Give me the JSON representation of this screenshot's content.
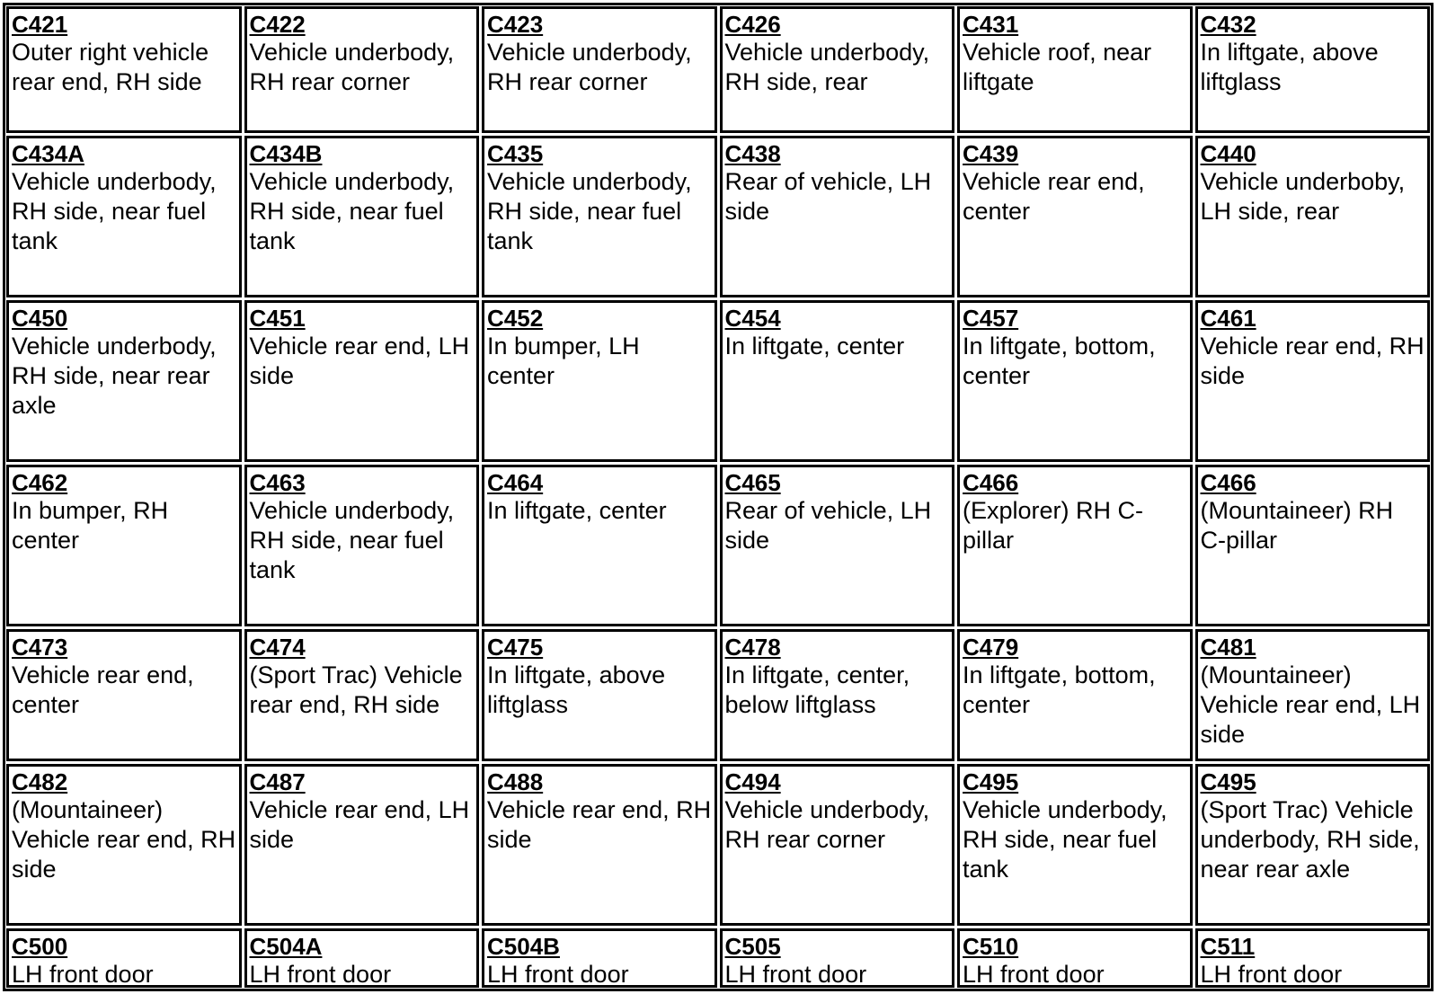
{
  "cells": [
    {
      "code": "C421",
      "desc": "Outer right vehicle rear end, RH side"
    },
    {
      "code": "C422",
      "desc": "Vehicle underbody, RH rear corner"
    },
    {
      "code": "C423",
      "desc": "Vehicle underbody, RH rear corner"
    },
    {
      "code": "C426",
      "desc": "Vehicle underbody, RH side, rear"
    },
    {
      "code": "C431",
      "desc": "Vehicle roof, near liftgate"
    },
    {
      "code": "C432",
      "desc": "In liftgate, above liftglass"
    },
    {
      "code": "C434A",
      "desc": "Vehicle underbody, RH side, near fuel tank"
    },
    {
      "code": "C434B",
      "desc": "Vehicle underbody, RH side, near fuel tank"
    },
    {
      "code": "C435",
      "desc": "Vehicle underbody, RH side, near fuel tank"
    },
    {
      "code": "C438",
      "desc": "Rear of vehicle, LH side"
    },
    {
      "code": "C439",
      "desc": "Vehicle rear end, center"
    },
    {
      "code": "C440",
      "desc": "Vehicle underboby, LH side, rear"
    },
    {
      "code": "C450",
      "desc": "Vehicle underbody, RH side, near rear axle"
    },
    {
      "code": "C451",
      "desc": "Vehicle rear end, LH side"
    },
    {
      "code": "C452",
      "desc": "In bumper, LH center"
    },
    {
      "code": "C454",
      "desc": "In liftgate, center"
    },
    {
      "code": "C457",
      "desc": "In liftgate, bottom, center"
    },
    {
      "code": "C461",
      "desc": "Vehicle rear end, RH side"
    },
    {
      "code": "C462",
      "desc": "In bumper, RH center"
    },
    {
      "code": "C463",
      "desc": "Vehicle underbody, RH side, near fuel tank"
    },
    {
      "code": "C464",
      "desc": "In liftgate, center"
    },
    {
      "code": "C465",
      "desc": "Rear of vehicle, LH side"
    },
    {
      "code": "C466",
      "desc": "(Explorer) RH C-pillar"
    },
    {
      "code": "C466",
      "desc": "(Mountaineer) RH C-pillar"
    },
    {
      "code": "C473",
      "desc": "Vehicle rear end, center"
    },
    {
      "code": "C474",
      "desc": "(Sport Trac) Vehicle rear end, RH side"
    },
    {
      "code": "C475",
      "desc": "In liftgate, above liftglass"
    },
    {
      "code": "C478",
      "desc": "In liftgate, center, below liftglass"
    },
    {
      "code": "C479",
      "desc": "In liftgate, bottom, center"
    },
    {
      "code": "C481",
      "desc": "(Mountaineer) Vehicle rear end, LH side"
    },
    {
      "code": "C482",
      "desc": "(Mountaineer) Vehicle rear end, RH side"
    },
    {
      "code": "C487",
      "desc": "Vehicle rear end, LH side"
    },
    {
      "code": "C488",
      "desc": "Vehicle rear end, RH side"
    },
    {
      "code": "C494",
      "desc": "Vehicle underbody, RH rear corner"
    },
    {
      "code": "C495",
      "desc": "Vehicle underbody, RH side, near fuel tank"
    },
    {
      "code": "C495",
      "desc": "(Sport Trac) Vehicle underbody, RH side, near rear axle"
    },
    {
      "code": "C500",
      "desc": "LH front door"
    },
    {
      "code": "C504A",
      "desc": "LH front door"
    },
    {
      "code": "C504B",
      "desc": "LH front door"
    },
    {
      "code": "C505",
      "desc": "LH front door"
    },
    {
      "code": "C510",
      "desc": "LH front door"
    },
    {
      "code": "C511",
      "desc": "LH front door"
    }
  ]
}
